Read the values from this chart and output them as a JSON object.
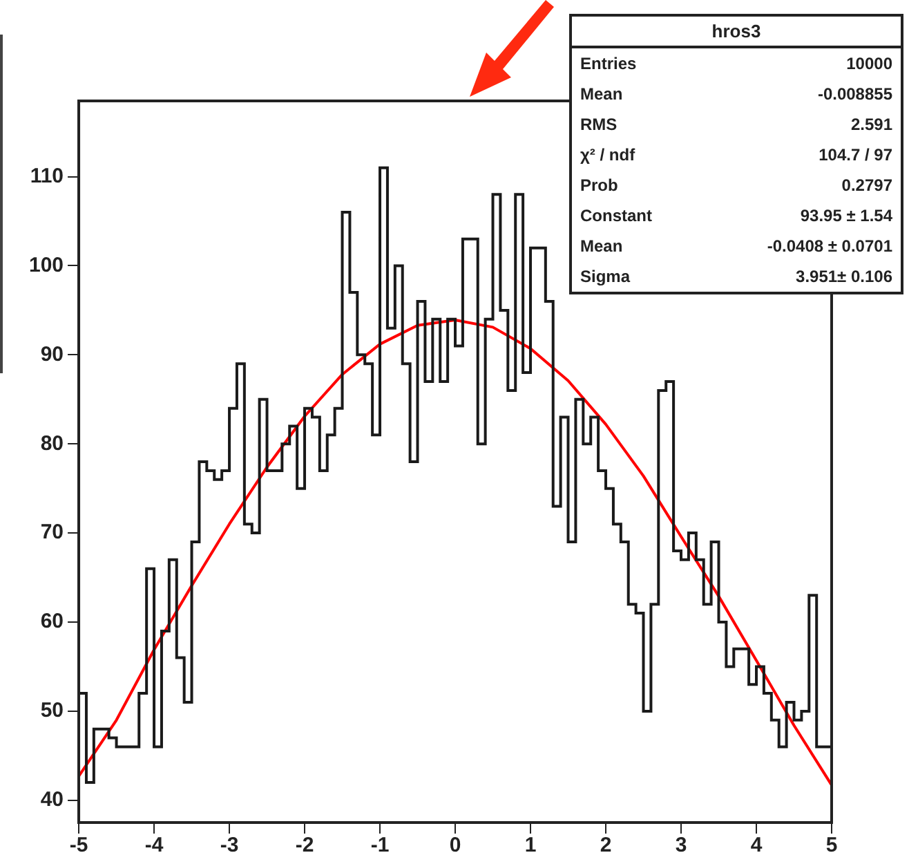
{
  "chart_data": {
    "type": "histogram",
    "title": "hros3",
    "bins": [
      -5,
      -4.9,
      -4.8,
      -4.7,
      -4.6,
      -4.5,
      -4.4,
      -4.3,
      -4.2,
      -4.1,
      -4,
      -3.9,
      -3.8,
      -3.7,
      -3.6,
      -3.5,
      -3.4,
      -3.3,
      -3.2,
      -3.1,
      -3,
      -2.9,
      -2.8,
      -2.7,
      -2.6,
      -2.5,
      -2.4,
      -2.3,
      -2.2,
      -2.1,
      -2,
      -1.9,
      -1.8,
      -1.7,
      -1.6,
      -1.5,
      -1.4,
      -1.3,
      -1.2,
      -1.1,
      -1,
      -0.9,
      -0.8,
      -0.7,
      -0.6,
      -0.5,
      -0.4,
      -0.3,
      -0.2,
      -0.1,
      0,
      0.1,
      0.2,
      0.3,
      0.4,
      0.5,
      0.6,
      0.7,
      0.8,
      0.9,
      1,
      1.1,
      1.2,
      1.3,
      1.4,
      1.5,
      1.6,
      1.7,
      1.8,
      1.9,
      2,
      2.1,
      2.2,
      2.3,
      2.4,
      2.5,
      2.6,
      2.7,
      2.8,
      2.9,
      3,
      3.1,
      3.2,
      3.3,
      3.4,
      3.5,
      3.6,
      3.7,
      3.8,
      3.9,
      4,
      4.1,
      4.2,
      4.3,
      4.4,
      4.5,
      4.6,
      4.7,
      4.8,
      4.9,
      5
    ],
    "series": [
      {
        "color": "#1a1a1a",
        "values": [
          52,
          42,
          48,
          48,
          47,
          46,
          46,
          46,
          52,
          66,
          46,
          59,
          67,
          56,
          51,
          69,
          78,
          77,
          76,
          77,
          84,
          89,
          71,
          70,
          85,
          77,
          77,
          80,
          82,
          75,
          84,
          83,
          77,
          81,
          84,
          106,
          97,
          90,
          89,
          81,
          111,
          93,
          100,
          89,
          78,
          96,
          87,
          94,
          87,
          94,
          91,
          103,
          103,
          80,
          94,
          108,
          95,
          86,
          108,
          88,
          102,
          102,
          96,
          73,
          83,
          69,
          85,
          80,
          83,
          77,
          75,
          71,
          69,
          62,
          61,
          50,
          62,
          86,
          87,
          68,
          67,
          70,
          67,
          62,
          69,
          60,
          55,
          57,
          57,
          53,
          55,
          52,
          49,
          46,
          51,
          49,
          50,
          63,
          46,
          46
        ]
      },
      {
        "type": "line",
        "color": "#ff0000",
        "x": [
          -5,
          -4.5,
          -4,
          -3.5,
          -3,
          -2.5,
          -2,
          -1.5,
          -1,
          -0.5,
          0,
          0.5,
          1,
          1.5,
          2,
          2.5,
          3,
          3.5,
          4,
          4.5,
          5
        ],
        "values": [
          42.7,
          49.0,
          56.9,
          64.1,
          71.0,
          77.4,
          83.1,
          87.8,
          91.2,
          93.3,
          93.9,
          93.1,
          90.7,
          87.1,
          82.2,
          76.4,
          69.6,
          62.9,
          55.7,
          48.4,
          41.7
        ]
      }
    ],
    "xlim": [
      -5,
      5
    ],
    "xticks": [
      -5,
      -4,
      -3,
      -2,
      -1,
      0,
      1,
      2,
      3,
      4,
      5
    ],
    "ylim": [
      37.5,
      118.5
    ],
    "yticks": [
      40,
      50,
      60,
      70,
      80,
      90,
      100,
      110
    ],
    "grid": false,
    "legend": false,
    "marker": "none",
    "annotations": [
      "Entries",
      "10000",
      "Mean",
      "-0.008855",
      "RMS",
      "2.591",
      "χ² / ndf",
      "104.7 / 97",
      "Prob",
      "0.2797",
      "Constant",
      "93.95 ± 1.54",
      "Mean",
      "-0.0408 ± 0.0701",
      "Sigma",
      "3.951± 0.106"
    ]
  }
}
